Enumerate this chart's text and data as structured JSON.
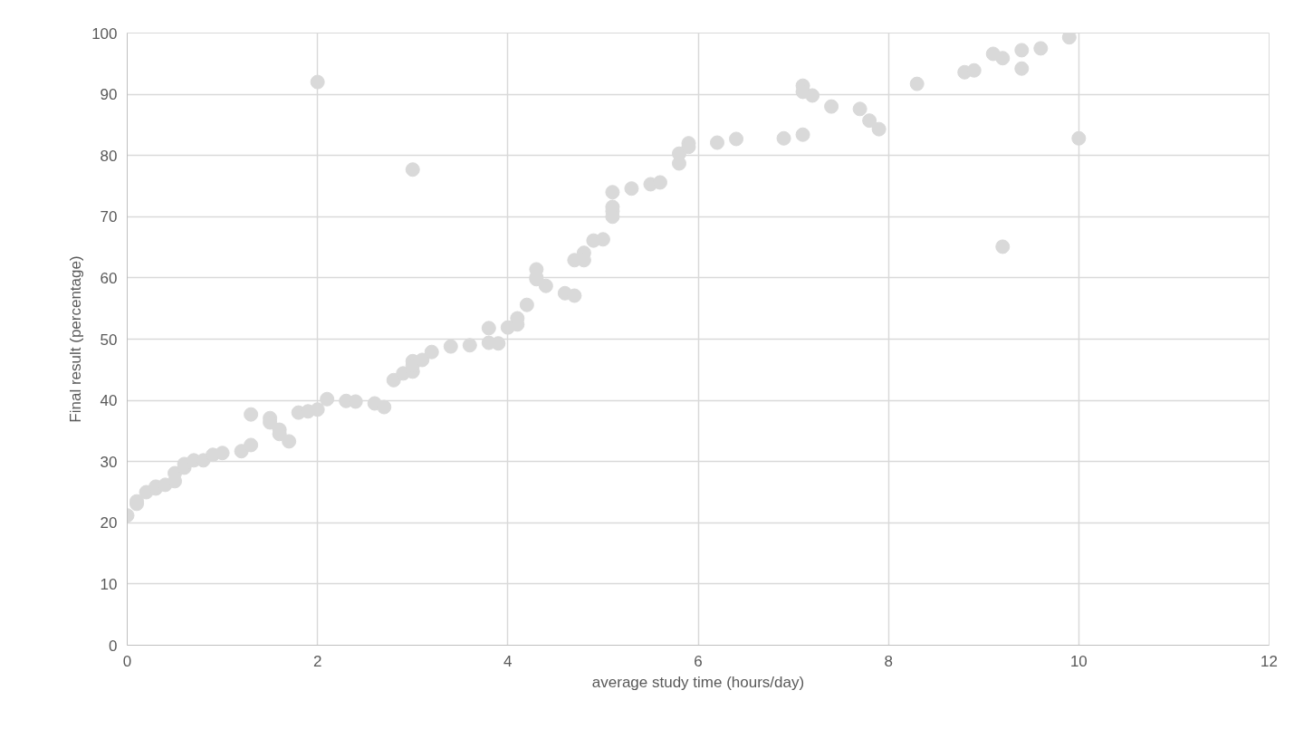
{
  "chart_data": {
    "type": "scatter",
    "xlabel": "average study time (hours/day)",
    "ylabel": "Final result (percentage)",
    "xlim": [
      0,
      12
    ],
    "xticks": [
      0,
      2,
      4,
      6,
      8,
      10,
      12
    ],
    "ylim": [
      0,
      100
    ],
    "yticks": [
      0,
      10,
      20,
      30,
      40,
      50,
      60,
      70,
      80,
      90,
      100
    ],
    "grid": true,
    "marker": "circle",
    "series": [
      {
        "color": "#d9d9d9",
        "x": [
          0,
          0.1,
          0.1,
          0.2,
          0.3,
          0.3,
          0.4,
          0.5,
          0.5,
          0.6,
          0.6,
          0.7,
          0.8,
          0.9,
          1.0,
          1.2,
          1.3,
          1.3,
          1.5,
          1.5,
          1.6,
          1.6,
          1.7,
          1.8,
          1.9,
          2.0,
          2.0,
          2.1,
          2.3,
          2.4,
          2.6,
          2.7,
          2.8,
          2.9,
          3.0,
          3.0,
          3.0,
          3.0,
          3.1,
          3.2,
          3.4,
          3.6,
          3.8,
          3.8,
          3.9,
          4.0,
          4.1,
          4.1,
          4.2,
          4.3,
          4.3,
          4.3,
          4.4,
          4.6,
          4.7,
          4.7,
          4.8,
          4.8,
          4.9,
          5.0,
          5.1,
          5.1,
          5.1,
          5.1,
          5.3,
          5.5,
          5.6,
          5.8,
          5.8,
          5.9,
          5.9,
          6.2,
          6.4,
          6.9,
          7.1,
          7.1,
          7.1,
          7.2,
          7.4,
          7.7,
          7.8,
          7.9,
          8.3,
          8.8,
          8.9,
          9.1,
          9.2,
          9.2,
          9.4,
          9.4,
          9.6,
          9.9,
          10.0
        ],
        "values": [
          21.2,
          23.1,
          23.5,
          25.0,
          25.6,
          25.9,
          26.2,
          28.1,
          26.8,
          29.0,
          29.6,
          30.2,
          30.2,
          31.1,
          31.4,
          31.7,
          32.7,
          37.7,
          37.1,
          36.4,
          35.2,
          34.5,
          33.3,
          38.0,
          38.2,
          38.5,
          92.0,
          40.2,
          39.9,
          39.8,
          39.5,
          38.9,
          43.3,
          44.4,
          44.7,
          46.4,
          45.7,
          77.7,
          46.6,
          47.9,
          48.8,
          49.0,
          49.4,
          51.8,
          49.3,
          51.9,
          52.4,
          53.4,
          55.6,
          61.4,
          60.1,
          59.8,
          58.7,
          57.5,
          57.1,
          62.9,
          64.1,
          62.9,
          66.1,
          66.3,
          74.0,
          71.6,
          70.9,
          70.0,
          74.6,
          75.3,
          75.6,
          78.7,
          80.3,
          82.0,
          81.4,
          82.1,
          82.7,
          82.8,
          83.4,
          91.4,
          90.4,
          89.8,
          88.0,
          87.6,
          85.7,
          84.3,
          91.7,
          93.6,
          93.9,
          96.6,
          95.9,
          65.1,
          97.2,
          94.2,
          97.5,
          99.3,
          82.8
        ]
      }
    ]
  }
}
